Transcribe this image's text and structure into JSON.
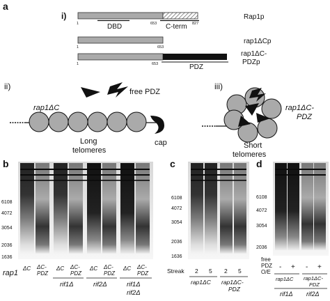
{
  "panel_labels": {
    "a": "a",
    "b": "b",
    "c": "c",
    "d": "d"
  },
  "panel_a": {
    "sub_i": "i)",
    "constructs": [
      {
        "name": "Rap1p",
        "start": "1",
        "mid": "653",
        "end": "827",
        "dbd": "DBD",
        "cterm": "C-term"
      },
      {
        "name": "rap1ΔCp",
        "start": "1",
        "end": "653"
      },
      {
        "name_line1": "rap1ΔC-",
        "name_line2": "PDZp",
        "start": "1",
        "mid": "653",
        "pdz": "PDZ"
      }
    ]
  },
  "panel_ii": {
    "label": "ii)",
    "gene": "rap1ΔC",
    "free_pdz": "free PDZ",
    "cap": "cap",
    "phenotype_line1": "Long",
    "phenotype_line2": "telomeres"
  },
  "panel_iii": {
    "label": "iii)",
    "gene_line1": "rap1ΔC-",
    "gene_line2": "PDZ",
    "phenotype_line1": "Short",
    "phenotype_line2": "telomeres"
  },
  "gel_b": {
    "markers": [
      "6108",
      "4072",
      "3054",
      "2036",
      "1636"
    ],
    "row_label": "rap1",
    "lane_groups": [
      {
        "a": "ΔC",
        "b1": "ΔC-",
        "b2": "PDZ"
      },
      {
        "a": "ΔC",
        "b1": "ΔC-",
        "b2": "PDZ"
      },
      {
        "a": "ΔC",
        "b1": "ΔC-",
        "b2": "PDZ"
      },
      {
        "a": "ΔC",
        "b1": "ΔC-",
        "b2": "PDZ"
      }
    ],
    "genotypes": [
      {
        "line1": "rif1Δ"
      },
      {
        "line1": "rif2Δ"
      },
      {
        "line1": "rif1Δ",
        "line2": "rif2Δ"
      }
    ]
  },
  "gel_c": {
    "markers": [
      "6108",
      "4072",
      "3054",
      "2036",
      "1636"
    ],
    "row_label": "Streak",
    "streak_values": [
      "2",
      "5",
      "2",
      "5"
    ],
    "genotypes": [
      {
        "line1": "rap1ΔC"
      },
      {
        "line1": "rap1ΔC-",
        "line2": "PDZ"
      }
    ]
  },
  "gel_d": {
    "markers": [
      "6108",
      "4072",
      "3054",
      "2036"
    ],
    "row_label_1": "free",
    "row_label_2": "PDZ",
    "row_label_3": "O/E",
    "oe_values": [
      "-",
      "+",
      "-",
      "+"
    ],
    "genotypes_top": [
      {
        "line1": "rap1ΔC"
      },
      {
        "line1": "rap1ΔC-",
        "line2": "PDZ"
      }
    ],
    "genotype_bottom_1": "rif1Δ",
    "genotype_bottom_2": "rif2Δ"
  }
}
